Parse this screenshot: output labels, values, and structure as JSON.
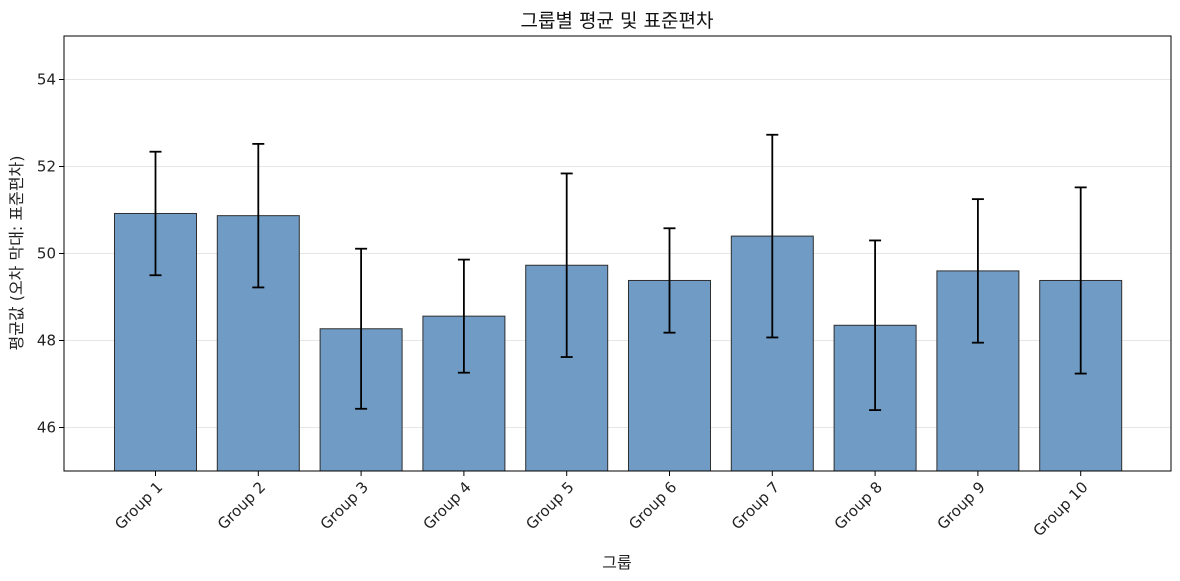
{
  "chart_data": {
    "type": "bar",
    "title": "그룹별 평균 및 표준편차",
    "xlabel": "그룹",
    "ylabel": "평균값 (오차 막대: 표준편차)",
    "categories": [
      "Group 1",
      "Group 2",
      "Group 3",
      "Group 4",
      "Group 5",
      "Group 6",
      "Group 7",
      "Group 8",
      "Group 9",
      "Group 10"
    ],
    "values": [
      50.92,
      50.87,
      48.27,
      48.56,
      49.73,
      49.38,
      50.4,
      48.35,
      49.6,
      49.38
    ],
    "errors": [
      1.42,
      1.65,
      1.84,
      1.3,
      2.11,
      1.2,
      2.33,
      1.95,
      1.65,
      2.14
    ],
    "ylim": [
      45,
      55
    ],
    "yticks": [
      46,
      48,
      50,
      52,
      54
    ],
    "grid": "y",
    "colors": {
      "bar": "#6f9bc4",
      "bar_edge": "#2f2f2f",
      "error": "#000000",
      "grid": "#e6e6e6"
    }
  }
}
